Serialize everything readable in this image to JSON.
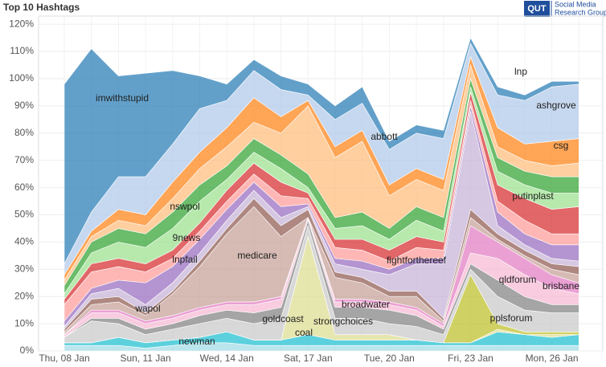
{
  "logo": {
    "mark": "QUT",
    "line1": "Social Media",
    "line2": "Research Group"
  },
  "chart_data": {
    "type": "stacked_area",
    "title": "Top 10 Hashtags",
    "categories": [
      "Thu, 08 Jan",
      null,
      null,
      "Sun, 11 Jan",
      null,
      null,
      "Wed, 14 Jan",
      null,
      null,
      "Sat, 17 Jan",
      null,
      null,
      "Tue, 20 Jan",
      null,
      null,
      "Fri, 23 Jan",
      null,
      null,
      "Mon, 26 Jan",
      null
    ],
    "ylim": [
      0,
      123
    ],
    "yticks": [
      {
        "value": 0,
        "label": "0%"
      },
      {
        "value": 10,
        "label": "10%"
      },
      {
        "value": 20,
        "label": "20%"
      },
      {
        "value": 30,
        "label": "30%"
      },
      {
        "value": 40,
        "label": "40%"
      },
      {
        "value": 50,
        "label": "50%"
      },
      {
        "value": 60,
        "label": "60%"
      },
      {
        "value": 70,
        "label": "70%"
      },
      {
        "value": 80,
        "label": "80%"
      },
      {
        "value": 90,
        "label": "90%"
      },
      {
        "value": 100,
        "label": "100%"
      },
      {
        "value": 110,
        "label": "110%"
      },
      {
        "value": 120,
        "label": "120%"
      }
    ],
    "grid": true,
    "series": [
      {
        "name": "newman",
        "color": "#9edae5",
        "values": [
          2,
          2,
          2,
          1,
          2,
          3,
          3,
          2,
          2,
          2,
          2,
          2,
          2,
          2,
          2,
          2,
          2,
          2,
          2,
          2
        ]
      },
      {
        "name": "coal",
        "color": "#17becf",
        "values": [
          1,
          1,
          3,
          2,
          2,
          2,
          4,
          2,
          2,
          4,
          2,
          2,
          2,
          2,
          1,
          1,
          5,
          4,
          3,
          4
        ]
      },
      {
        "name": "strongchoices",
        "color": "#dbdb8d",
        "values": [
          0,
          0,
          0,
          0,
          0,
          0,
          0,
          0,
          0,
          36,
          2,
          2,
          2,
          0,
          0,
          0,
          1,
          0,
          1,
          0
        ]
      },
      {
        "name": "pplsforum",
        "color": "#bcbd22",
        "values": [
          0,
          0,
          0,
          0,
          0,
          0,
          0,
          0,
          0,
          0,
          0,
          0,
          0,
          0,
          0,
          25,
          2,
          1,
          1,
          1
        ]
      },
      {
        "name": "goldcoast",
        "color": "#c7c7c7",
        "values": [
          2,
          8,
          5,
          3,
          4,
          5,
          5,
          6,
          8,
          4,
          6,
          6,
          4,
          5,
          3,
          2,
          10,
          8,
          7,
          7
        ]
      },
      {
        "name": "broadwater",
        "color": "#7f7f7f",
        "values": [
          0,
          1,
          2,
          2,
          2,
          3,
          3,
          4,
          4,
          2,
          4,
          4,
          5,
          4,
          2,
          2,
          6,
          5,
          3,
          3
        ]
      },
      {
        "name": "brisbane",
        "color": "#f7b6d2",
        "values": [
          1,
          2,
          2,
          2,
          2,
          2,
          2,
          3,
          3,
          1,
          2,
          2,
          2,
          2,
          1,
          4,
          8,
          8,
          6,
          4
        ]
      },
      {
        "name": "qldforum",
        "color": "#e377c2",
        "values": [
          0,
          1,
          1,
          1,
          1,
          1,
          1,
          1,
          1,
          0,
          1,
          1,
          1,
          1,
          1,
          10,
          6,
          6,
          5,
          4
        ]
      },
      {
        "name": "medicare",
        "color": "#c49c94",
        "values": [
          1,
          2,
          3,
          2,
          8,
          15,
          25,
          35,
          22,
          0,
          8,
          6,
          2,
          4,
          1,
          3,
          1,
          1,
          2,
          3
        ]
      },
      {
        "name": "wapol",
        "color": "#8c564b",
        "values": [
          1,
          2,
          2,
          1,
          1,
          2,
          2,
          3,
          4,
          3,
          2,
          2,
          2,
          2,
          1,
          3,
          2,
          2,
          2,
          3
        ]
      },
      {
        "name": "fightforthereef",
        "color": "#c5b0d5",
        "values": [
          1,
          2,
          3,
          3,
          3,
          3,
          3,
          3,
          3,
          1,
          3,
          3,
          6,
          10,
          20,
          36,
          3,
          2,
          2,
          2
        ]
      },
      {
        "name": "lnpfail",
        "color": "#9467bd",
        "values": [
          2,
          2,
          3,
          8,
          6,
          5,
          4,
          3,
          4,
          1,
          2,
          3,
          2,
          2,
          2,
          2,
          5,
          4,
          5,
          6
        ]
      },
      {
        "name": "9news",
        "color": "#ff9896",
        "values": [
          6,
          6,
          5,
          4,
          3,
          3,
          3,
          3,
          4,
          2,
          4,
          4,
          3,
          4,
          3,
          2,
          4,
          5,
          4,
          4
        ]
      },
      {
        "name": "putinplast",
        "color": "#d62728",
        "values": [
          2,
          3,
          3,
          3,
          3,
          3,
          4,
          4,
          5,
          2,
          3,
          4,
          4,
          4,
          3,
          3,
          6,
          8,
          9,
          10
        ]
      },
      {
        "name": "nswpol",
        "color": "#98df8a",
        "values": [
          2,
          4,
          6,
          6,
          8,
          8,
          4,
          4,
          5,
          2,
          4,
          5,
          4,
          6,
          4,
          2,
          5,
          5,
          6,
          5
        ]
      },
      {
        "name": "csg",
        "color": "#2ca02c",
        "values": [
          3,
          4,
          5,
          5,
          6,
          6,
          5,
          5,
          5,
          5,
          4,
          5,
          4,
          5,
          5,
          3,
          5,
          5,
          6,
          6
        ]
      },
      {
        "name": "abbott",
        "color": "#ffbb78",
        "values": [
          2,
          2,
          3,
          3,
          5,
          6,
          7,
          6,
          8,
          25,
          22,
          26,
          12,
          10,
          10,
          5,
          4,
          4,
          4,
          5
        ]
      },
      {
        "name": "ashgrove",
        "color": "#ff7f0e",
        "values": [
          2,
          2,
          4,
          4,
          6,
          6,
          7,
          9,
          6,
          2,
          4,
          4,
          4,
          4,
          4,
          3,
          7,
          6,
          9,
          9
        ]
      },
      {
        "name": "lnp",
        "color": "#aec7e8",
        "values": [
          4,
          7,
          12,
          14,
          14,
          16,
          10,
          10,
          10,
          2,
          10,
          10,
          13,
          13,
          15,
          5,
          12,
          16,
          20,
          20
        ]
      },
      {
        "name": "imwithstupid",
        "color": "#1f77b4",
        "values": [
          66,
          60,
          37,
          38,
          27,
          12,
          6,
          4,
          5,
          4,
          5,
          6,
          3,
          3,
          3,
          2,
          3,
          2,
          2,
          1
        ]
      }
    ]
  }
}
